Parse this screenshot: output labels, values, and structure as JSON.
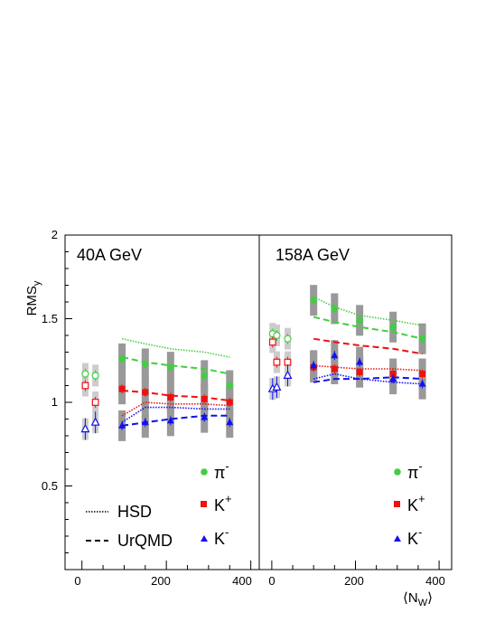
{
  "chart_data": {
    "type": "scatter",
    "ylabel": "RMS",
    "ylabel_sub": "y",
    "xlabel": "⟨N",
    "xlabel_sub": "W",
    "xlabel_end": "⟩",
    "ylim": [
      0,
      2
    ],
    "yticks": [
      "0.5",
      "1",
      "1.5",
      "2"
    ],
    "xticks_left": [
      "0",
      "200",
      "400"
    ],
    "xticks_right": [
      "0",
      "200",
      "400"
    ],
    "legend_particles": [
      {
        "symbol": "π",
        "sup": "-",
        "color": "#44cc44",
        "marker": "circle"
      },
      {
        "symbol": "K",
        "sup": "+",
        "color": "#ee1111",
        "marker": "square"
      },
      {
        "symbol": "K",
        "sup": "-",
        "color": "#1111ee",
        "marker": "triangle"
      }
    ],
    "legend_models": [
      {
        "name": "HSD",
        "style": "dotted"
      },
      {
        "name": "UrQMD",
        "style": "dashed"
      }
    ],
    "panels": [
      {
        "title": "40A GeV",
        "xlim": [
          -40,
          420
        ],
        "data": {
          "pi": {
            "x": [
              95,
              150,
              210,
              290,
              350
            ],
            "y": [
              1.26,
              1.23,
              1.21,
              1.16,
              1.1
            ]
          },
          "kp": {
            "x": [
              95,
              150,
              210,
              290,
              350
            ],
            "y": [
              1.08,
              1.06,
              1.03,
              1.02,
              1.0
            ]
          },
          "km": {
            "x": [
              95,
              150,
              210,
              290,
              350
            ],
            "y": [
              0.86,
              0.88,
              0.89,
              0.91,
              0.88
            ]
          }
        },
        "open": {
          "pi": {
            "x": [
              8,
              32
            ],
            "y": [
              1.17,
              1.16
            ]
          },
          "kp": {
            "x": [
              8,
              32
            ],
            "y": [
              1.1,
              1.0
            ]
          },
          "km": {
            "x": [
              8,
              32
            ],
            "y": [
              0.84,
              0.88
            ]
          }
        },
        "hsd": {
          "pi": {
            "x": [
              95,
              150,
              210,
              290,
              350
            ],
            "y": [
              1.38,
              1.35,
              1.32,
              1.3,
              1.27
            ]
          },
          "kp": {
            "x": [
              95,
              150,
              210,
              290,
              350
            ],
            "y": [
              0.92,
              1.0,
              0.99,
              0.99,
              0.98
            ]
          },
          "km": {
            "x": [
              95,
              150,
              210,
              290,
              350
            ],
            "y": [
              0.88,
              0.97,
              0.97,
              0.96,
              0.96
            ]
          }
        },
        "urqmd": {
          "pi": {
            "x": [
              95,
              150,
              210,
              290,
              350
            ],
            "y": [
              1.27,
              1.24,
              1.22,
              1.2,
              1.17
            ]
          },
          "kp": {
            "x": [
              95,
              150,
              210,
              290,
              350
            ],
            "y": [
              1.07,
              1.06,
              1.04,
              1.03,
              1.01
            ]
          },
          "km": {
            "x": [
              95,
              150,
              210,
              290,
              350
            ],
            "y": [
              0.86,
              0.88,
              0.9,
              0.92,
              0.92
            ]
          }
        }
      },
      {
        "title": "158A GeV",
        "xlim": [
          -30,
          430
        ],
        "data": {
          "pi": {
            "x": [
              100,
              150,
              210,
              290,
              360
            ],
            "y": [
              1.61,
              1.56,
              1.49,
              1.45,
              1.38
            ]
          },
          "kp": {
            "x": [
              100,
              150,
              210,
              290,
              360
            ],
            "y": [
              1.21,
              1.2,
              1.18,
              1.17,
              1.17
            ]
          },
          "km": {
            "x": [
              100,
              150,
              210,
              290,
              360
            ],
            "y": [
              1.22,
              1.28,
              1.24,
              1.14,
              1.11
            ]
          }
        },
        "open": {
          "pi": {
            "x": [
              2,
              12,
              38
            ],
            "y": [
              1.41,
              1.4,
              1.38
            ]
          },
          "kp": {
            "x": [
              2,
              12,
              38
            ],
            "y": [
              1.36,
              1.24,
              1.24
            ]
          },
          "km": {
            "x": [
              2,
              12,
              38
            ],
            "y": [
              1.08,
              1.09,
              1.16
            ]
          }
        },
        "hsd": {
          "pi": {
            "x": [
              100,
              150,
              210,
              290,
              360
            ],
            "y": [
              1.63,
              1.57,
              1.52,
              1.49,
              1.46
            ]
          },
          "kp": {
            "x": [
              100,
              150,
              210,
              290,
              360
            ],
            "y": [
              1.22,
              1.21,
              1.2,
              1.2,
              1.19
            ]
          },
          "km": {
            "x": [
              100,
              150,
              210,
              290,
              360
            ],
            "y": [
              1.14,
              1.17,
              1.14,
              1.12,
              1.11
            ]
          }
        },
        "urqmd": {
          "pi": {
            "x": [
              100,
              150,
              210,
              290,
              360
            ],
            "y": [
              1.51,
              1.48,
              1.45,
              1.42,
              1.38
            ]
          },
          "kp": {
            "x": [
              100,
              150,
              210,
              290,
              360
            ],
            "y": [
              1.38,
              1.36,
              1.34,
              1.32,
              1.29
            ]
          },
          "km": {
            "x": [
              100,
              150,
              210,
              290,
              360
            ],
            "y": [
              1.12,
              1.14,
              1.14,
              1.15,
              1.14
            ]
          }
        }
      }
    ],
    "colors": {
      "pi": "#44cc44",
      "kp": "#ee1111",
      "km": "#1111ee",
      "band": "#999999",
      "band_light": "#cccccc"
    }
  }
}
